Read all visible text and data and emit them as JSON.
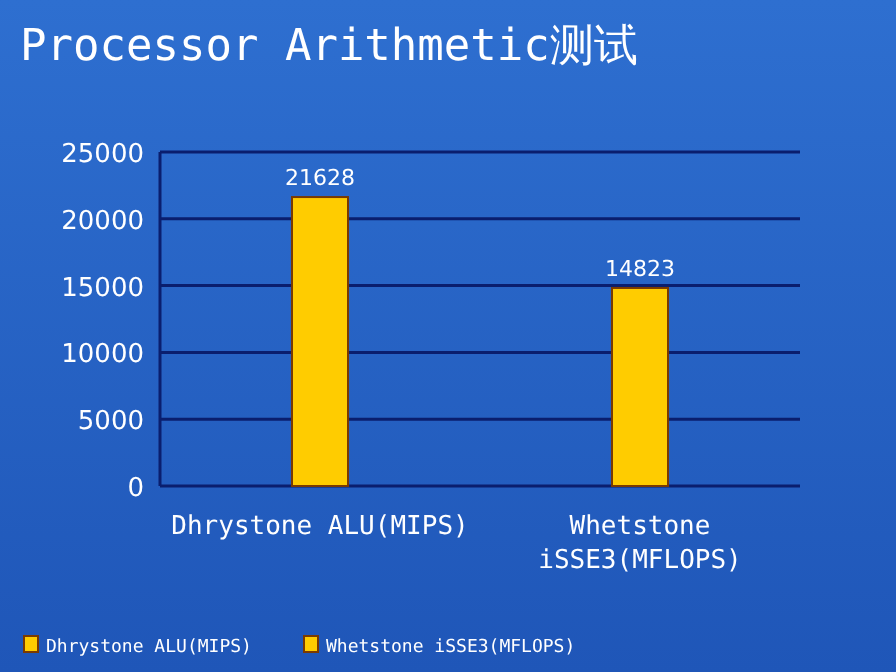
{
  "chart_data": {
    "type": "bar",
    "title": "Processor Arithmetic测试",
    "categories": [
      "Dhrystone ALU(MIPS)",
      "Whetstone iSSE3(MFLOPS)"
    ],
    "series": [
      {
        "name": "Dhrystone ALU(MIPS)",
        "color": "#ffcc00",
        "values": [
          21628,
          null
        ]
      },
      {
        "name": "Whetstone iSSE3(MFLOPS)",
        "color": "#ffcc00",
        "values": [
          null,
          14823
        ]
      }
    ],
    "ylim": [
      0,
      25000
    ],
    "yticks": [
      0,
      5000,
      10000,
      15000,
      20000,
      25000
    ],
    "grid": "y",
    "data_labels": true,
    "legend": "bottom"
  }
}
